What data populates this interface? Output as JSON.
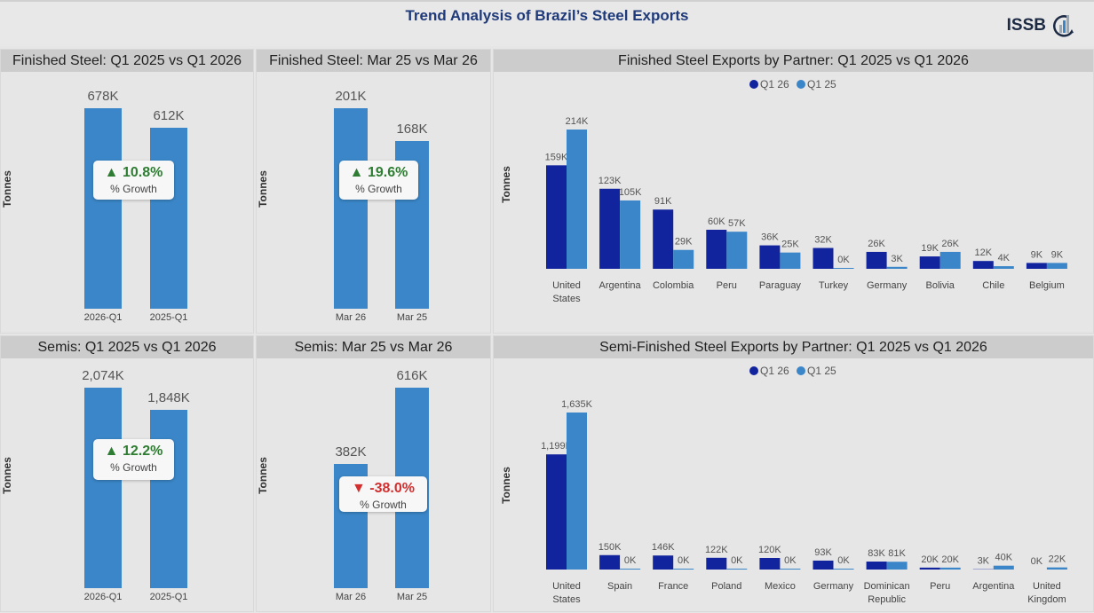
{
  "header": {
    "title": "Trend Analysis of Brazil’s Steel Exports",
    "logo_text": "ISSB"
  },
  "axis_label": "Tonnes",
  "growth_label": "% Growth",
  "kpis": [
    {
      "title": "Finished Steel: Q1 2025 vs Q1 2026",
      "bars": [
        {
          "category": "2026-Q1",
          "value": 678,
          "label": "678K"
        },
        {
          "category": "2025-Q1",
          "value": 612,
          "label": "612K"
        }
      ],
      "growth": "10.8%",
      "direction": "up"
    },
    {
      "title": "Finished Steel: Mar 25 vs Mar 26",
      "bars": [
        {
          "category": "Mar 26",
          "value": 201,
          "label": "201K"
        },
        {
          "category": "Mar 25",
          "value": 168,
          "label": "168K"
        }
      ],
      "growth": "19.6%",
      "direction": "up"
    },
    {
      "title": "Semis: Q1 2025 vs Q1 2026",
      "bars": [
        {
          "category": "2026-Q1",
          "value": 2074,
          "label": "2,074K"
        },
        {
          "category": "2025-Q1",
          "value": 1848,
          "label": "1,848K"
        }
      ],
      "growth": "12.2%",
      "direction": "up"
    },
    {
      "title": "Semis: Mar 25 vs Mar 26",
      "bars": [
        {
          "category": "Mar 26",
          "value": 382,
          "label": "382K"
        },
        {
          "category": "Mar 25",
          "value": 616,
          "label": "616K"
        }
      ],
      "growth": "-38.0%",
      "direction": "down"
    }
  ],
  "colors": {
    "q1_26": "#12239e",
    "q1_25": "#3a86c8",
    "up": "#2e7d32",
    "down": "#d32f2f"
  },
  "chart_data": [
    {
      "type": "bar",
      "title": "Finished Steel Exports by Partner: Q1 2025 vs Q1 2026",
      "ylabel": "Tonnes",
      "legend": "top-center",
      "categories": [
        "United States",
        "Argentina",
        "Colombia",
        "Peru",
        "Paraguay",
        "Turkey",
        "Germany",
        "Bolivia",
        "Chile",
        "Belgium"
      ],
      "series": [
        {
          "name": "Q1 26",
          "values": [
            159,
            123,
            91,
            60,
            36,
            32,
            26,
            19,
            12,
            9
          ]
        },
        {
          "name": "Q1 25",
          "values": [
            214,
            105,
            29,
            57,
            25,
            0,
            3,
            26,
            4,
            9
          ]
        }
      ],
      "unit": "K"
    },
    {
      "type": "bar",
      "title": "Semi-Finished Steel Exports by Partner: Q1 2025 vs Q1 2026",
      "ylabel": "Tonnes",
      "legend": "top-center",
      "categories": [
        "United Kingdom",
        "Spain",
        "France",
        "Poland",
        "Mexico",
        "Germany",
        "Dominican Republic",
        "Peru",
        "Argentina",
        "United Kingdom"
      ],
      "series": [
        {
          "name": "Q1 26",
          "values": [
            1199,
            150,
            146,
            122,
            120,
            93,
            83,
            20,
            3,
            0
          ]
        },
        {
          "name": "Q1 25",
          "values": [
            1635,
            0,
            0,
            0,
            0,
            0,
            81,
            20,
            40,
            22
          ]
        }
      ],
      "unit": "K"
    }
  ]
}
